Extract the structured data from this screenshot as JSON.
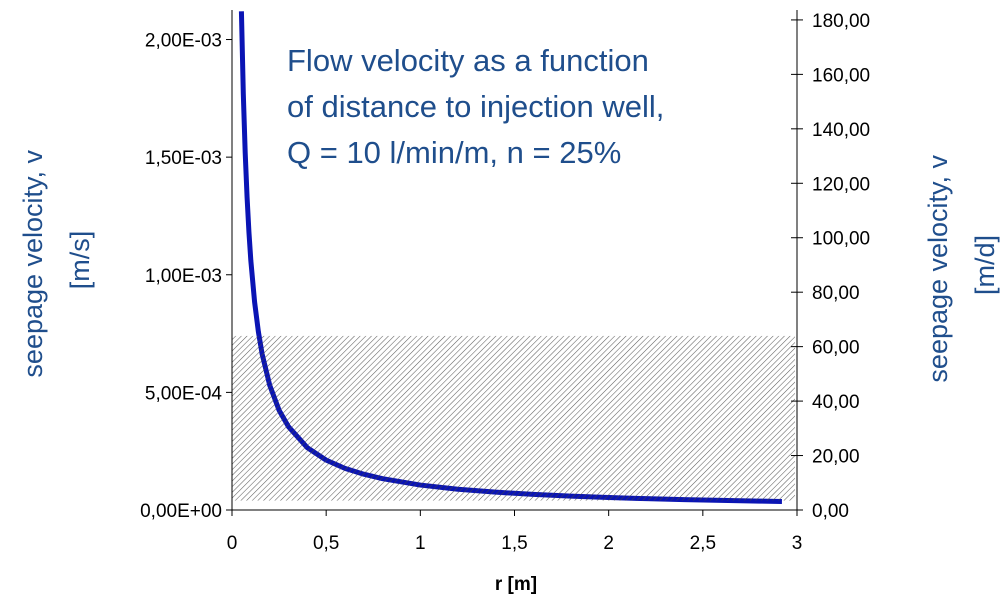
{
  "chart_data": {
    "type": "line",
    "title_lines": [
      "Flow velocity as a function",
      "of distance to injection well,",
      "Q = 10 l/min/m, n = 25%"
    ],
    "xlabel": "r [m]",
    "ylabel_left_lines": [
      "seepage velocity, v",
      "[m/s]"
    ],
    "ylabel_right_lines": [
      "seepage velocity, v",
      "[m/d]"
    ],
    "xlim": [
      0,
      3
    ],
    "ylim_left": [
      0,
      0.0021
    ],
    "ylim_right": [
      0,
      181.44
    ],
    "x_ticks": [
      0,
      0.5,
      1,
      1.5,
      2,
      2.5,
      3
    ],
    "x_tick_labels": [
      "0",
      "0,5",
      "1",
      "1,5",
      "2",
      "2,5",
      "3"
    ],
    "y_left_ticks": [
      0,
      0.0005,
      0.001,
      0.0015,
      0.002
    ],
    "y_left_tick_labels": [
      "0,00E+00",
      "5,00E-04",
      "1,00E-03",
      "1,50E-03",
      "2,00E-03"
    ],
    "y_right_ticks": [
      0,
      20,
      40,
      60,
      80,
      100,
      120,
      140,
      160,
      180
    ],
    "y_right_tick_labels": [
      "0,00",
      "20,00",
      "40,00",
      "60,00",
      "80,00",
      "100,00",
      "120,00",
      "140,00",
      "160,00",
      "180,00"
    ],
    "grid": false,
    "series": [
      {
        "color": "#0a14b4",
        "x": [
          0.05,
          0.06,
          0.07,
          0.08,
          0.09,
          0.1,
          0.12,
          0.14,
          0.16,
          0.2,
          0.25,
          0.3,
          0.4,
          0.5,
          0.6,
          0.7,
          0.8,
          1.0,
          1.2,
          1.4,
          1.6,
          1.8,
          2.0,
          2.2,
          2.4,
          2.6,
          2.8,
          2.92
        ],
        "y": [
          0.00212,
          0.00177,
          0.00152,
          0.00133,
          0.00118,
          0.00106,
          0.000884,
          0.000758,
          0.000663,
          0.000531,
          0.000424,
          0.000354,
          0.000265,
          0.000212,
          0.000177,
          0.000152,
          0.000133,
          0.000106,
          8.84e-05,
          7.58e-05,
          6.63e-05,
          5.89e-05,
          5.31e-05,
          4.82e-05,
          4.42e-05,
          4.08e-05,
          3.79e-05,
          3.63e-05
        ]
      }
    ],
    "shaded_region": {
      "x": [
        0,
        3
      ],
      "y_left": [
        4e-05,
        0.00074
      ]
    },
    "colors": {
      "line": "#0a14b4",
      "title": "#1f4e8c",
      "hatch": "#555555"
    }
  }
}
